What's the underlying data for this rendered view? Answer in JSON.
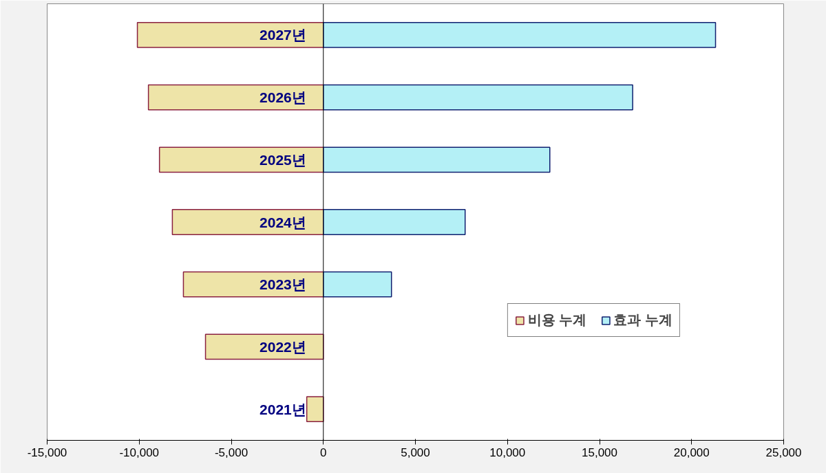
{
  "chart_data": {
    "type": "bar",
    "orientation": "horizontal",
    "stacked": true,
    "categories": [
      "2027년",
      "2026년",
      "2025년",
      "2024년",
      "2023년",
      "2022년",
      "2021년"
    ],
    "series": [
      {
        "name": "비용 누계",
        "color": "#eee4a8",
        "values": [
          -10100,
          -9500,
          -8900,
          -8200,
          -7600,
          -6400,
          -900
        ]
      },
      {
        "name": "효과 누계",
        "color": "#b4f0f6",
        "values": [
          21300,
          16800,
          12300,
          7700,
          3700,
          null,
          null
        ]
      }
    ],
    "xlim": [
      -15000,
      25000
    ],
    "xticks": [
      {
        "value": -15000,
        "label": "-15,000"
      },
      {
        "value": -10000,
        "label": "-10,000"
      },
      {
        "value": -5000,
        "label": "-5,000"
      },
      0,
      {
        "value": 5000,
        "label": "5,000"
      },
      {
        "value": 10000,
        "label": "10,000"
      },
      {
        "value": 15000,
        "label": "15,000"
      },
      {
        "value": 20000,
        "label": "20,000"
      },
      {
        "value": 25000,
        "label": "25,000"
      }
    ],
    "grid": false,
    "legend": "bottom right"
  }
}
